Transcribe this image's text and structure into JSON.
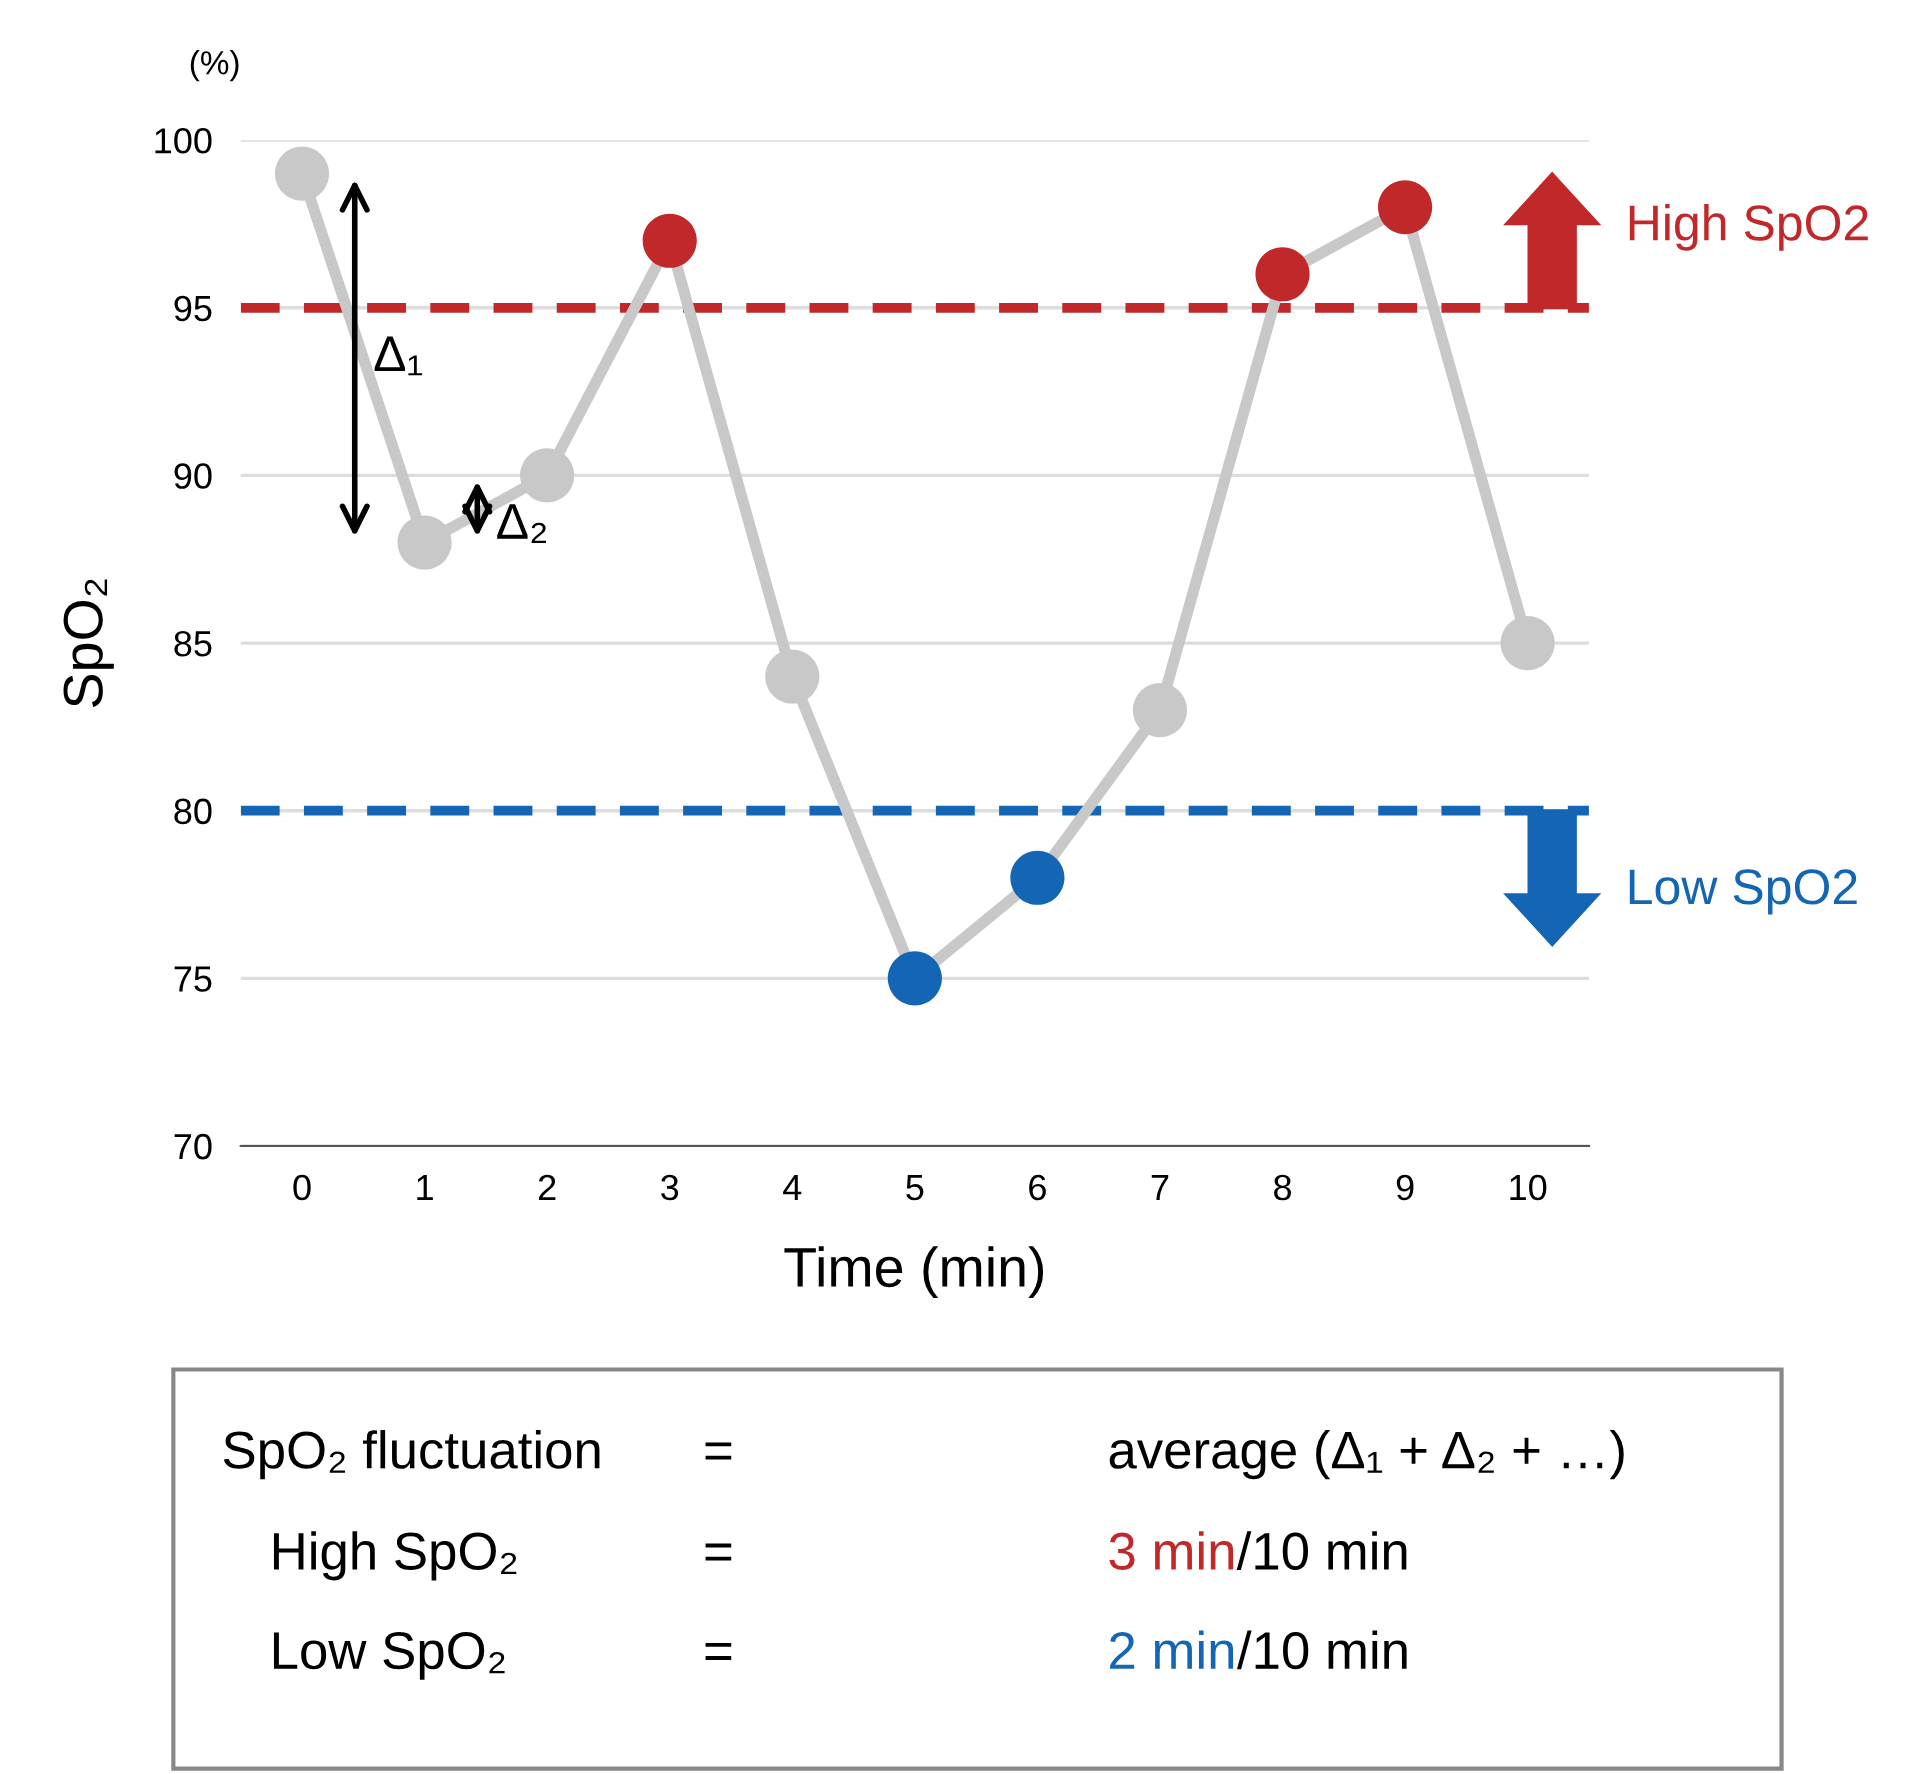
{
  "chart_data": {
    "type": "line",
    "xlabel": "Time (min)",
    "ylabel": "SpO₂",
    "x": [
      0,
      1,
      2,
      3,
      4,
      5,
      6,
      7,
      8,
      9,
      10
    ],
    "series": [
      {
        "color": "#c8c8c8",
        "colors": [
          "#c8c8c8",
          "#c8c8c8",
          "#c8c8c8",
          "#c0282a",
          "#c8c8c8",
          "#1565b5",
          "#1565b5",
          "#c8c8c8",
          "#c0282a",
          "#c0282a",
          "#c8c8c8"
        ],
        "values": [
          99,
          88,
          90,
          97,
          84,
          75,
          78,
          83,
          96,
          98,
          85
        ]
      }
    ],
    "xlim": [
      -0.5,
      10.5
    ],
    "xticks": [
      0,
      1,
      2,
      3,
      4,
      5,
      6,
      7,
      8,
      9,
      10
    ],
    "ylim": [
      70,
      100
    ],
    "yticks": [
      70,
      75,
      80,
      85,
      90,
      95,
      100
    ],
    "grid": "y",
    "marker": "circle",
    "line_style": "solid",
    "legend": false,
    "ref_lines": [
      {
        "axis": "y",
        "value": 95,
        "label": "High SpO2",
        "color": "#c0282a",
        "line_style": "dashed"
      },
      {
        "axis": "y",
        "value": 80,
        "label": "Low SpO2",
        "color": "#1565b5",
        "line_style": "dashed"
      }
    ],
    "annotations": [
      "(%)",
      {
        "text": "Δ₁",
        "x": 0.5,
        "y": 93.5
      },
      {
        "text": "Δ₂",
        "x": 1.5,
        "y": 88.5
      },
      "SpO₂ fluctuation",
      "=",
      "average (Δ₁ + Δ₂ + …)",
      "High SpO₂",
      "=",
      "3 min",
      "/10 min",
      "Low SpO₂",
      "=",
      "2 min",
      "/10 min"
    ]
  }
}
